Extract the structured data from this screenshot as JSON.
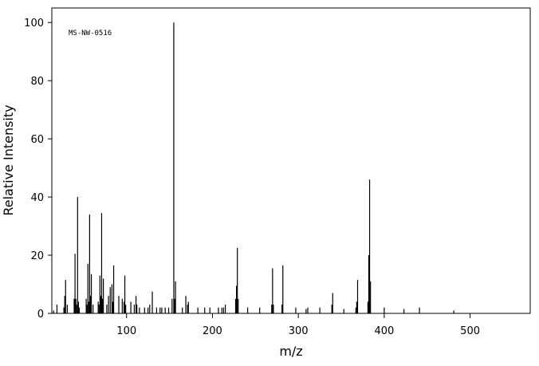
{
  "chart_data": {
    "type": "stick",
    "annotation": "MS-NW-0516",
    "xlabel": "m/z",
    "ylabel": "Relative Intensity",
    "x": [
      15,
      19,
      27,
      28,
      29,
      31,
      39,
      40,
      41,
      42,
      43,
      44,
      45,
      53,
      54,
      55,
      56,
      57,
      58,
      59,
      61,
      67,
      68,
      69,
      70,
      71,
      72,
      73,
      77,
      79,
      81,
      83,
      84,
      85,
      91,
      95,
      97,
      98,
      99,
      105,
      109,
      111,
      112,
      115,
      121,
      125,
      127,
      130,
      135,
      139,
      141,
      145,
      149,
      153,
      155,
      156,
      157,
      165,
      169,
      171,
      172,
      183,
      191,
      197,
      207,
      211,
      213,
      215,
      227,
      228,
      229,
      230,
      241,
      255,
      269,
      270,
      271,
      281,
      282,
      297,
      309,
      311,
      325,
      339,
      340,
      353,
      367,
      368,
      369,
      381,
      382,
      383,
      384,
      400,
      423,
      441,
      481
    ],
    "values": [
      1,
      3,
      2,
      6,
      11.5,
      3,
      5,
      20.5,
      5,
      3,
      40,
      4,
      2,
      5,
      3,
      17,
      4,
      34,
      6,
      13.5,
      3,
      4,
      3,
      13,
      6,
      34.5,
      5,
      12,
      3,
      6,
      9,
      10,
      4,
      16.5,
      6,
      5,
      4,
      13,
      3,
      4,
      3,
      6,
      3,
      2,
      2,
      2,
      3,
      7.5,
      2,
      2,
      2,
      2,
      2,
      5,
      100,
      5,
      11,
      2,
      6,
      3,
      4,
      2,
      2,
      2,
      2,
      2,
      2,
      3,
      5,
      9.5,
      22.5,
      5,
      2,
      2,
      3,
      15.5,
      3,
      3,
      16.5,
      2,
      1.5,
      2,
      2,
      3,
      7,
      1.5,
      2,
      4,
      11.5,
      4,
      20,
      46,
      11,
      2,
      1.5,
      2,
      1
    ],
    "color": "#000000",
    "xlim": [
      13,
      570
    ],
    "ylim": [
      0,
      105
    ],
    "xticks": [
      100,
      200,
      300,
      400,
      500
    ],
    "yticks": [
      0,
      20,
      40,
      60,
      80,
      100
    ]
  }
}
